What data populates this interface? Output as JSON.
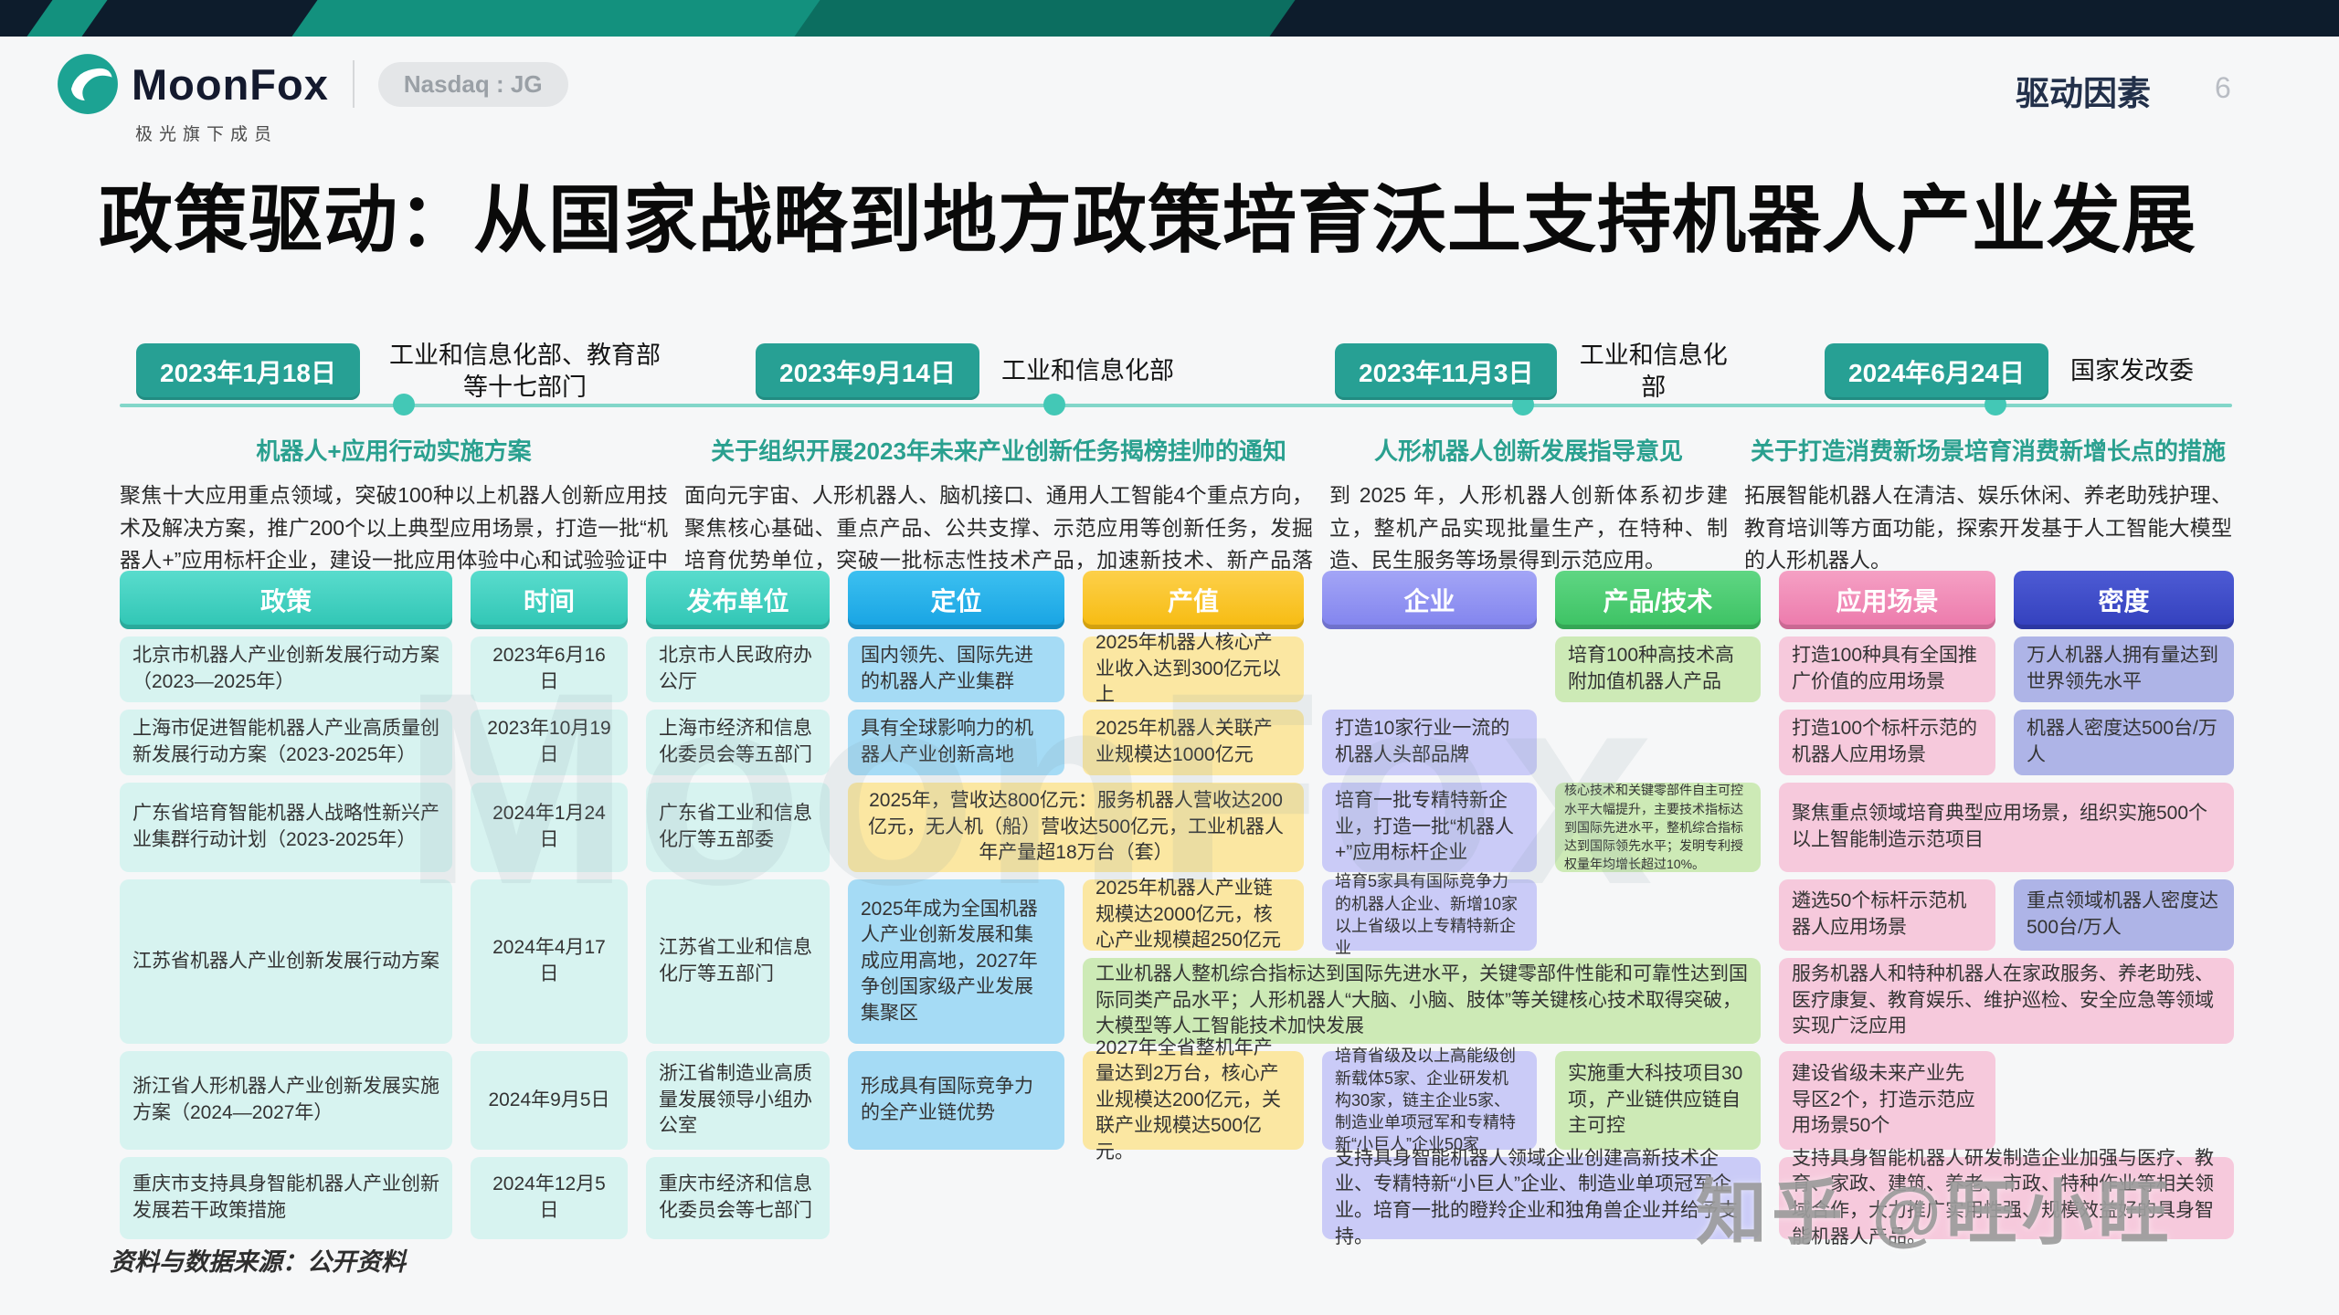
{
  "header": {
    "brand": "MoonFox",
    "badge": "Nasdaq : JG",
    "brand_subtitle": "极光旗下成员",
    "section_label": "驱动因素",
    "page_number": "6"
  },
  "title": "政策驱动：从国家战略到地方政策培育沃土支持机器人产业发展",
  "colors": {
    "accent_teal": "#27a094",
    "header_teal": "#3fd0c0",
    "header_blue": "#1fabe8",
    "header_yellow": "#f9c22b",
    "header_purple": "#8f92f2",
    "header_green": "#47c96e",
    "header_pink": "#f08cb8",
    "header_indigo": "#3d4bc8",
    "banner_navy": "#0d1c2c"
  },
  "timeline": {
    "items": [
      {
        "date": "2023年1月18日",
        "dept": "工业和信息化部、教育部等十七部门",
        "policy": "机器人+应用行动实施方案",
        "body": "聚焦十大应用重点领域，突破100种以上机器人创新应用技术及解决方案，推广200个以上典型应用场景，打造一批“机器人+”应用标杆企业，建设一批应用体验中心和试验验证中心。"
      },
      {
        "date": "2023年9月14日",
        "dept": "工业和信息化部",
        "policy": "关于组织开展2023年未来产业创新任务揭榜挂帅的通知",
        "body": "面向元宇宙、人形机器人、脑机接口、通用人工智能4个重点方向，聚焦核心基础、重点产品、公共支撑、示范应用等创新任务，发掘培育优势单位，突破一批标志性技术产品，加速新技术、新产品落地应用。"
      },
      {
        "date": "2023年11月3日",
        "dept": "工业和信息化部",
        "policy": "人形机器人创新发展指导意见",
        "body": "到 2025 年，人形机器人创新体系初步建立，整机产品实现批量生产，在特种、制造、民生服务等场景得到示范应用。"
      },
      {
        "date": "2024年6月24日",
        "dept": "国家发改委",
        "policy": "关于打造消费新场景培育消费新增长点的措施",
        "body": "拓展智能机器人在清洁、娱乐休闲、养老助残护理、教育培训等方面功能，探索开发基于人工智能大模型的人形机器人。"
      }
    ]
  },
  "table": {
    "headers": [
      {
        "label": "政策",
        "type": "teal"
      },
      {
        "label": "时间",
        "type": "teal"
      },
      {
        "label": "发布单位",
        "type": "teal"
      },
      {
        "label": "定位",
        "type": "blue"
      },
      {
        "label": "产值",
        "type": "yellow"
      },
      {
        "label": "企业",
        "type": "purple"
      },
      {
        "label": "产品/技术",
        "type": "green"
      },
      {
        "label": "应用场景",
        "type": "pink"
      },
      {
        "label": "密度",
        "type": "indigo"
      }
    ],
    "cells": [
      {
        "r": 2,
        "c": 1,
        "t": "cyan",
        "x": "北京市机器人产业创新发展行动方案（2023—2025年）"
      },
      {
        "r": 2,
        "c": 2,
        "t": "cyan",
        "a": "c",
        "x": "2023年6月16日"
      },
      {
        "r": 2,
        "c": 3,
        "t": "cyan",
        "x": "北京市人民政府办公厅"
      },
      {
        "r": 2,
        "c": 4,
        "t": "blue",
        "x": "国内领先、国际先进的机器人产业集群"
      },
      {
        "r": 2,
        "c": 5,
        "t": "yellow",
        "x": "2025年机器人核心产业收入达到300亿元以上"
      },
      {
        "r": 2,
        "c": 7,
        "t": "green",
        "x": "培育100种高技术高附加值机器人产品"
      },
      {
        "r": 2,
        "c": 8,
        "t": "pink",
        "x": "打造100种具有全国推广价值的应用场景"
      },
      {
        "r": 2,
        "c": 9,
        "t": "indigo",
        "x": "万人机器人拥有量达到世界领先水平"
      },
      {
        "r": 3,
        "c": 1,
        "t": "cyan",
        "x": "上海市促进智能机器人产业高质量创新发展行动方案（2023-2025年）"
      },
      {
        "r": 3,
        "c": 2,
        "t": "cyan",
        "a": "c",
        "x": "2023年10月19日"
      },
      {
        "r": 3,
        "c": 3,
        "t": "cyan",
        "x": "上海市经济和信息化委员会等五部门"
      },
      {
        "r": 3,
        "c": 4,
        "t": "blue",
        "x": "具有全球影响力的机器人产业创新高地"
      },
      {
        "r": 3,
        "c": 5,
        "t": "yellow",
        "x": "2025年机器人关联产业规模达1000亿元"
      },
      {
        "r": 3,
        "c": 6,
        "t": "purple",
        "x": "打造10家行业一流的机器人头部品牌"
      },
      {
        "r": 3,
        "c": 8,
        "t": "pink",
        "x": "打造100个标杆示范的机器人应用场景"
      },
      {
        "r": 3,
        "c": 9,
        "t": "indigo",
        "x": "机器人密度达500台/万人"
      },
      {
        "r": 4,
        "c": 1,
        "t": "cyan",
        "x": "广东省培育智能机器人战略性新兴产业集群行动计划（2023-2025年）"
      },
      {
        "r": 4,
        "c": 2,
        "t": "cyan",
        "a": "c",
        "x": "2024年1月24日"
      },
      {
        "r": 4,
        "c": 3,
        "t": "cyan",
        "x": "广东省工业和信息化厅等五部委"
      },
      {
        "r": 4,
        "c": 4,
        "cs": 2,
        "t": "yellow",
        "a": "c",
        "x": "2025年，营收达800亿元：服务机器人营收达200亿元，无人机（船）营收达500亿元，工业机器人年产量超18万台（套）"
      },
      {
        "r": 4,
        "c": 6,
        "t": "purple",
        "x": "培育一批专精特新企业，打造一批“机器人+”应用标杆企业"
      },
      {
        "r": 4,
        "c": 7,
        "t": "green",
        "s": "xs",
        "x": "核心技术和关键零部件自主可控水平大幅提升，主要技术指标达到国际先进水平，整机综合指标达到国际领先水平；发明专利授权量年均增长超过10%。"
      },
      {
        "r": 4,
        "c": 8,
        "cs": 2,
        "t": "pink",
        "x": "聚焦重点领域培育典型应用场景，组织实施500个以上智能制造示范项目"
      },
      {
        "r": 5,
        "c": 1,
        "rs": 2,
        "t": "cyan",
        "x": "江苏省机器人产业创新发展行动方案"
      },
      {
        "r": 5,
        "c": 2,
        "rs": 2,
        "t": "cyan",
        "a": "c",
        "x": "2024年4月17日"
      },
      {
        "r": 5,
        "c": 3,
        "rs": 2,
        "t": "cyan",
        "x": "江苏省工业和信息化厅等五部门"
      },
      {
        "r": 5,
        "c": 4,
        "rs": 2,
        "t": "blue",
        "x": "2025年成为全国机器人产业创新发展和集成应用高地，2027年争创国家级产业发展集聚区"
      },
      {
        "r": 5,
        "c": 5,
        "t": "yellow",
        "x": "2025年机器人产业链规模达2000亿元，核心产业规模超250亿元"
      },
      {
        "r": 5,
        "c": 6,
        "t": "purple",
        "s": "sm",
        "x": "培育5家具有国际竞争力的机器人企业、新增10家以上省级以上专精特新企业"
      },
      {
        "r": 5,
        "c": 8,
        "t": "pink",
        "x": "遴选50个标杆示范机器人应用场景"
      },
      {
        "r": 5,
        "c": 9,
        "t": "indigo",
        "x": "重点领域机器人密度达500台/万人"
      },
      {
        "r": 6,
        "c": 5,
        "cs": 3,
        "t": "green",
        "x": "工业机器人整机综合指标达到国际先进水平，关键零部件性能和可靠性达到国际同类产品水平；人形机器人“大脑、小脑、肢体”等关键核心技术取得突破，大模型等人工智能技术加快发展"
      },
      {
        "r": 6,
        "c": 8,
        "cs": 2,
        "t": "pink",
        "x": "服务机器人和特种机器人在家政服务、养老助残、医疗康复、教育娱乐、维护巡检、安全应急等领域实现广泛应用"
      },
      {
        "r": 7,
        "c": 1,
        "t": "cyan",
        "x": "浙江省人形机器人产业创新发展实施方案（2024—2027年）"
      },
      {
        "r": 7,
        "c": 2,
        "t": "cyan",
        "a": "c",
        "x": "2024年9月5日"
      },
      {
        "r": 7,
        "c": 3,
        "t": "cyan",
        "x": "浙江省制造业高质量发展领导小组办公室"
      },
      {
        "r": 7,
        "c": 4,
        "t": "blue",
        "x": "形成具有国际竞争力的全产业链优势"
      },
      {
        "r": 7,
        "c": 5,
        "t": "yellow",
        "x": "2027年全省整机年产量达到2万台，核心产业规模达200亿元，关联产业规模达500亿元。"
      },
      {
        "r": 7,
        "c": 6,
        "t": "purple",
        "s": "sm",
        "x": "培育省级及以上高能级创新载体5家、企业研发机构30家，链主企业5家、制造业单项冠军和专精特新“小巨人”企业50家"
      },
      {
        "r": 7,
        "c": 7,
        "t": "green",
        "x": "实施重大科技项目30项，产业链供应链自主可控"
      },
      {
        "r": 7,
        "c": 8,
        "t": "pink",
        "x": "建设省级未来产业先导区2个，打造示范应用场景50个"
      },
      {
        "r": 8,
        "c": 1,
        "t": "cyan",
        "x": "重庆市支持具身智能机器人产业创新发展若干政策措施"
      },
      {
        "r": 8,
        "c": 2,
        "t": "cyan",
        "a": "c",
        "x": "2024年12月5日"
      },
      {
        "r": 8,
        "c": 3,
        "t": "cyan",
        "x": "重庆市经济和信息化委员会等七部门"
      },
      {
        "r": 8,
        "c": 6,
        "cs": 2,
        "t": "purple",
        "x": "支持具身智能机器人领域企业创建高新技术企业、专精特新“小巨人”企业、制造业单项冠军企业。培育一批的瞪羚企业和独角兽企业并给予支持。"
      },
      {
        "r": 8,
        "c": 8,
        "cs": 2,
        "t": "pink",
        "x": "支持具身智能机器人研发制造企业加强与医疗、教育、家政、建筑、养老、市政、特种作业等相关领域合作，大力推广实用性强、规模效益好的具身智能机器人产品。"
      }
    ]
  },
  "footer": {
    "source": "资料与数据来源：公开资料"
  },
  "watermarks": {
    "brand": "MoonFox",
    "zhihu": "知乎 @旺小旺"
  }
}
